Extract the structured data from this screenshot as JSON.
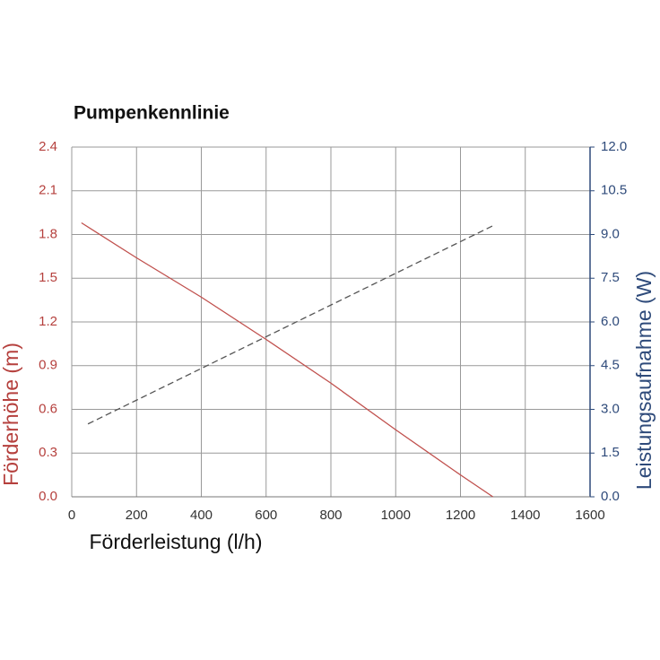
{
  "chart_data": {
    "type": "line",
    "title": "Pumpenkennlinie",
    "x_label": "Förderleistung (l/h)",
    "y_label": "Förderhöhe (m)",
    "y2_label": "Leistungsaufnahme (W)",
    "xlim": [
      0,
      1600
    ],
    "xticks": [
      0,
      200,
      400,
      600,
      800,
      1000,
      1200,
      1400,
      1600
    ],
    "ylim": [
      0,
      2.4
    ],
    "yticks": [
      {
        "value": 0,
        "label": "0.0"
      },
      0.3,
      0.6,
      0.9,
      1.2,
      1.5,
      1.8,
      2.1,
      2.4
    ],
    "y2lim": [
      0,
      12
    ],
    "y2ticks": [
      {
        "value": 0,
        "label": "0.0"
      },
      1.5,
      {
        "value": 3,
        "label": "3.0"
      },
      4.5,
      {
        "value": 6,
        "label": "6.0"
      },
      7.5,
      {
        "value": 9,
        "label": "9.0"
      },
      10.5,
      {
        "value": 12,
        "label": "12.0"
      }
    ],
    "grid": true,
    "series": [
      {
        "color": "#c0504d",
        "linestyle": "solid",
        "x": [
          30,
          200,
          400,
          600,
          800,
          1000,
          1200,
          1300
        ],
        "values": [
          1.88,
          1.64,
          1.37,
          1.08,
          0.78,
          0.46,
          0.15,
          0.0
        ]
      },
      {
        "color": "#555555",
        "linestyle": "dashed",
        "axis": "y2",
        "x": [
          50,
          1300
        ],
        "values": [
          2.5,
          9.3
        ]
      }
    ]
  }
}
